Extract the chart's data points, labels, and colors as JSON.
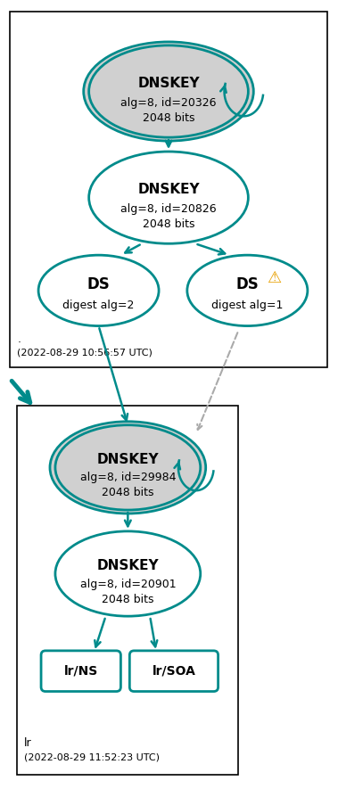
{
  "teal": "#008b8b",
  "gray_fill": "#d0d0d0",
  "white_fill": "#ffffff",
  "black": "#000000",
  "gray_arrow": "#aaaaaa",
  "box1_dot": ".",
  "box1_timestamp": "(2022-08-29 10:56:57 UTC)",
  "box2_label": "lr",
  "box2_timestamp": "(2022-08-29 11:52:23 UTC)",
  "ksk1_label": "DNSKEY",
  "ksk1_sub": "alg=8, id=20326\n2048 bits",
  "zsk1_label": "DNSKEY",
  "zsk1_sub": "alg=8, id=20826\n2048 bits",
  "ds1_label": "DS",
  "ds1_sub": "digest alg=2",
  "ds2_label": "DS",
  "ds2_sub": "digest alg=1",
  "ksk2_label": "DNSKEY",
  "ksk2_sub": "alg=8, id=29984\n2048 bits",
  "zsk2_label": "DNSKEY",
  "zsk2_sub": "alg=8, id=20901\n2048 bits",
  "ns_label": "lr/NS",
  "soa_label": "lr/SOA",
  "figw": 3.79,
  "figh": 8.85,
  "dpi": 100
}
